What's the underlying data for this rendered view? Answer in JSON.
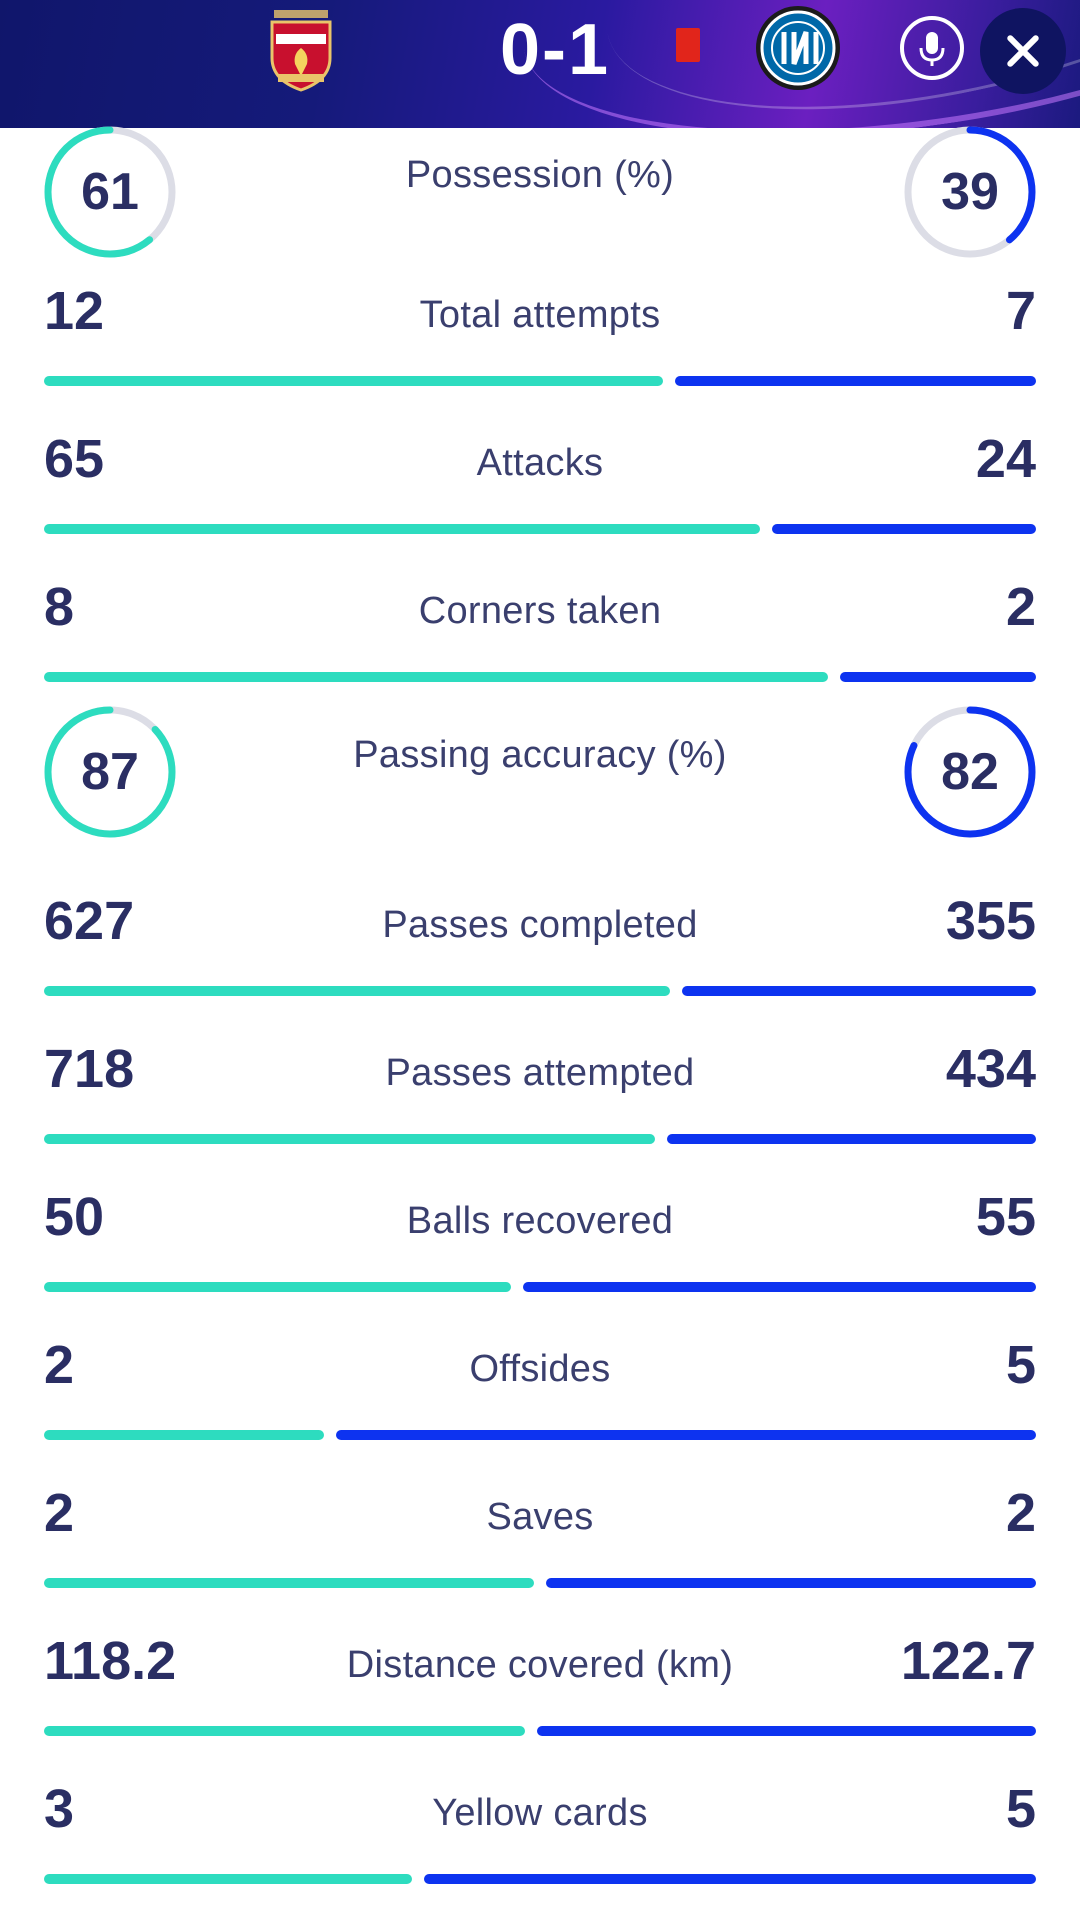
{
  "header": {
    "score": "0-1",
    "home_crest_icon": "liverpool-crest-icon",
    "away_crest_icon": "inter-crest-icon",
    "red_card_icon": "red-card-icon",
    "mic_icon": "microphone-icon",
    "close_icon": "close-icon",
    "colors": {
      "home": "#2ddcbf",
      "away": "#0d33f0",
      "header": "#151a7a"
    }
  },
  "stats": [
    {
      "label": "Possession (%)",
      "home": "61",
      "away": "39",
      "type": "ring",
      "home_pct": 0.61,
      "away_pct": 0.39
    },
    {
      "label": "Total attempts",
      "home": "12",
      "away": "7",
      "type": "bar",
      "home_n": 12,
      "away_n": 7
    },
    {
      "label": "Attacks",
      "home": "65",
      "away": "24",
      "type": "bar",
      "home_n": 65,
      "away_n": 24
    },
    {
      "label": "Corners taken",
      "home": "8",
      "away": "2",
      "type": "bar",
      "home_n": 8,
      "away_n": 2
    },
    {
      "label": "Passing accuracy (%)",
      "home": "87",
      "away": "82",
      "type": "ring",
      "home_pct": 0.87,
      "away_pct": 0.82
    },
    {
      "label": "Passes completed",
      "home": "627",
      "away": "355",
      "type": "bar",
      "home_n": 627,
      "away_n": 355
    },
    {
      "label": "Passes attempted",
      "home": "718",
      "away": "434",
      "type": "bar",
      "home_n": 718,
      "away_n": 434
    },
    {
      "label": "Balls recovered",
      "home": "50",
      "away": "55",
      "type": "bar",
      "home_n": 50,
      "away_n": 55
    },
    {
      "label": "Offsides",
      "home": "2",
      "away": "5",
      "type": "bar",
      "home_n": 2,
      "away_n": 5
    },
    {
      "label": "Saves",
      "home": "2",
      "away": "2",
      "type": "bar",
      "home_n": 2,
      "away_n": 2
    },
    {
      "label": "Distance covered (km)",
      "home": "118.2",
      "away": "122.7",
      "type": "bar",
      "home_n": 118.2,
      "away_n": 122.7
    },
    {
      "label": "Yellow cards",
      "home": "3",
      "away": "5",
      "type": "bar",
      "home_n": 3,
      "away_n": 5
    }
  ]
}
